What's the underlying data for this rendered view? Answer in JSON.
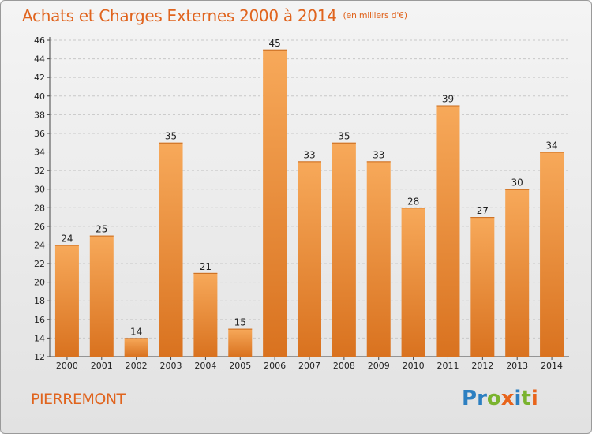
{
  "title": "Achats et Charges Externes 2000 à 2014",
  "unit": "(en milliers d'€)",
  "commune": "PIERREMONT",
  "logo": {
    "text": "Proxiti",
    "letters": [
      {
        "ch": "P",
        "color": "#2c7fc1"
      },
      {
        "ch": "r",
        "color": "#2c7fc1"
      },
      {
        "ch": "o",
        "color": "#7ab32e"
      },
      {
        "ch": "x",
        "color": "#e8641b"
      },
      {
        "ch": "i",
        "color": "#2c7fc1"
      },
      {
        "ch": "t",
        "color": "#7ab32e"
      },
      {
        "ch": "i",
        "color": "#e8641b"
      }
    ]
  },
  "colors": {
    "accent": "#e0641e",
    "bar_light": "#f7a95a",
    "bar_dark": "#d9721f",
    "grid": "#c8c8c8"
  },
  "chart_data": {
    "type": "bar",
    "title": "Achats et Charges Externes 2000 à 2014",
    "subtitle": "(en milliers d'€)",
    "categories": [
      "2000",
      "2001",
      "2002",
      "2003",
      "2004",
      "2005",
      "2006",
      "2007",
      "2008",
      "2009",
      "2010",
      "2011",
      "2012",
      "2013",
      "2014"
    ],
    "values": [
      24,
      25,
      14,
      35,
      21,
      15,
      45,
      33,
      35,
      33,
      28,
      39,
      27,
      30,
      34
    ],
    "ylim": [
      12,
      46
    ],
    "yticks": [
      12,
      14,
      16,
      18,
      20,
      22,
      24,
      26,
      28,
      30,
      32,
      34,
      36,
      38,
      40,
      42,
      44,
      46
    ],
    "grid": true,
    "xlabel": "",
    "ylabel": ""
  }
}
